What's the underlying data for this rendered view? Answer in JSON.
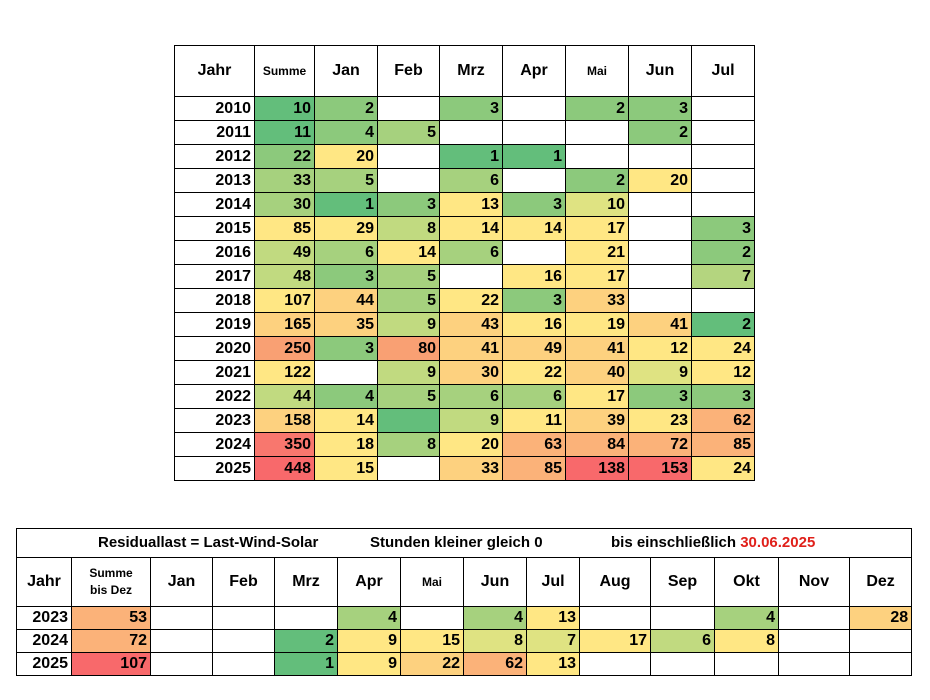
{
  "palette": {
    "green_dark": "#63be7b",
    "green_mid": "#8cc97c",
    "green_light": "#c1da80",
    "yellow": "#ffe784",
    "orange_light": "#fdd17f",
    "orange": "#fbb279",
    "salmon": "#f9916e",
    "red": "#f8696b",
    "title_accent": "#e0201a"
  },
  "table1": {
    "headers": [
      "Jahr",
      "Summe",
      "Jan",
      "Feb",
      "Mrz",
      "Apr",
      "Mai",
      "Jun",
      "Jul"
    ],
    "rows": [
      {
        "year": "2010",
        "cells": [
          {
            "v": "10",
            "c": "#63be7b"
          },
          {
            "v": "2",
            "c": "#8cc97c"
          },
          {
            "v": "",
            "c": ""
          },
          {
            "v": "3",
            "c": "#8cc97c"
          },
          {
            "v": "",
            "c": ""
          },
          {
            "v": "2",
            "c": "#8cc97c"
          },
          {
            "v": "3",
            "c": "#8cc97c"
          },
          {
            "v": "",
            "c": ""
          }
        ]
      },
      {
        "year": "2011",
        "cells": [
          {
            "v": "11",
            "c": "#63be7b"
          },
          {
            "v": "4",
            "c": "#8cc97c"
          },
          {
            "v": "5",
            "c": "#a6d17e"
          },
          {
            "v": "",
            "c": ""
          },
          {
            "v": "",
            "c": ""
          },
          {
            "v": "",
            "c": ""
          },
          {
            "v": "2",
            "c": "#8cc97c"
          },
          {
            "v": "",
            "c": ""
          }
        ]
      },
      {
        "year": "2012",
        "cells": [
          {
            "v": "22",
            "c": "#8cc97c"
          },
          {
            "v": "20",
            "c": "#ffe784"
          },
          {
            "v": "",
            "c": ""
          },
          {
            "v": "1",
            "c": "#63be7b"
          },
          {
            "v": "1",
            "c": "#63be7b"
          },
          {
            "v": "",
            "c": ""
          },
          {
            "v": "",
            "c": ""
          },
          {
            "v": "",
            "c": ""
          }
        ]
      },
      {
        "year": "2013",
        "cells": [
          {
            "v": "33",
            "c": "#a6d17e"
          },
          {
            "v": "5",
            "c": "#a6d17e"
          },
          {
            "v": "",
            "c": ""
          },
          {
            "v": "6",
            "c": "#a6d17e"
          },
          {
            "v": "",
            "c": ""
          },
          {
            "v": "2",
            "c": "#8cc97c"
          },
          {
            "v": "20",
            "c": "#ffe784"
          },
          {
            "v": "",
            "c": ""
          }
        ]
      },
      {
        "year": "2014",
        "cells": [
          {
            "v": "30",
            "c": "#a6d17e"
          },
          {
            "v": "1",
            "c": "#63be7b"
          },
          {
            "v": "3",
            "c": "#8cc97c"
          },
          {
            "v": "13",
            "c": "#ffe784"
          },
          {
            "v": "3",
            "c": "#8cc97c"
          },
          {
            "v": "10",
            "c": "#dfe382"
          },
          {
            "v": "",
            "c": ""
          },
          {
            "v": "",
            "c": ""
          }
        ]
      },
      {
        "year": "2015",
        "cells": [
          {
            "v": "85",
            "c": "#ffe784"
          },
          {
            "v": "29",
            "c": "#ffe784"
          },
          {
            "v": "8",
            "c": "#c1da80"
          },
          {
            "v": "14",
            "c": "#ffe784"
          },
          {
            "v": "14",
            "c": "#ffe784"
          },
          {
            "v": "17",
            "c": "#ffe784"
          },
          {
            "v": "",
            "c": ""
          },
          {
            "v": "3",
            "c": "#8cc97c"
          }
        ]
      },
      {
        "year": "2016",
        "cells": [
          {
            "v": "49",
            "c": "#c1da80"
          },
          {
            "v": "6",
            "c": "#a6d17e"
          },
          {
            "v": "14",
            "c": "#ffe784"
          },
          {
            "v": "6",
            "c": "#a6d17e"
          },
          {
            "v": "",
            "c": ""
          },
          {
            "v": "21",
            "c": "#ffe784"
          },
          {
            "v": "",
            "c": ""
          },
          {
            "v": "2",
            "c": "#8cc97c"
          }
        ]
      },
      {
        "year": "2017",
        "cells": [
          {
            "v": "48",
            "c": "#c1da80"
          },
          {
            "v": "3",
            "c": "#8cc97c"
          },
          {
            "v": "5",
            "c": "#a6d17e"
          },
          {
            "v": "",
            "c": ""
          },
          {
            "v": "16",
            "c": "#ffe784"
          },
          {
            "v": "17",
            "c": "#ffe784"
          },
          {
            "v": "",
            "c": ""
          },
          {
            "v": "7",
            "c": "#b4d57f"
          }
        ]
      },
      {
        "year": "2018",
        "cells": [
          {
            "v": "107",
            "c": "#ffe784"
          },
          {
            "v": "44",
            "c": "#fdd17f"
          },
          {
            "v": "5",
            "c": "#a6d17e"
          },
          {
            "v": "22",
            "c": "#ffe784"
          },
          {
            "v": "3",
            "c": "#8cc97c"
          },
          {
            "v": "33",
            "c": "#fdd17f"
          },
          {
            "v": "",
            "c": ""
          },
          {
            "v": "",
            "c": ""
          }
        ]
      },
      {
        "year": "2019",
        "cells": [
          {
            "v": "165",
            "c": "#fdd17f"
          },
          {
            "v": "35",
            "c": "#fdd17f"
          },
          {
            "v": "9",
            "c": "#c1da80"
          },
          {
            "v": "43",
            "c": "#fdd17f"
          },
          {
            "v": "16",
            "c": "#ffe784"
          },
          {
            "v": "19",
            "c": "#ffe784"
          },
          {
            "v": "41",
            "c": "#fdd17f"
          },
          {
            "v": "2",
            "c": "#63be7b"
          }
        ]
      },
      {
        "year": "2020",
        "cells": [
          {
            "v": "250",
            "c": "#f9a073"
          },
          {
            "v": "3",
            "c": "#8cc97c"
          },
          {
            "v": "80",
            "c": "#f9a073"
          },
          {
            "v": "41",
            "c": "#fdd17f"
          },
          {
            "v": "49",
            "c": "#fdd17f"
          },
          {
            "v": "41",
            "c": "#fdd17f"
          },
          {
            "v": "12",
            "c": "#ffe784"
          },
          {
            "v": "24",
            "c": "#ffe784"
          }
        ]
      },
      {
        "year": "2021",
        "cells": [
          {
            "v": "122",
            "c": "#ffe784"
          },
          {
            "v": "",
            "c": ""
          },
          {
            "v": "9",
            "c": "#c1da80"
          },
          {
            "v": "30",
            "c": "#fdd17f"
          },
          {
            "v": "22",
            "c": "#ffe784"
          },
          {
            "v": "40",
            "c": "#fdd17f"
          },
          {
            "v": "9",
            "c": "#dfe382"
          },
          {
            "v": "12",
            "c": "#ffe784"
          }
        ]
      },
      {
        "year": "2022",
        "cells": [
          {
            "v": "44",
            "c": "#c1da80"
          },
          {
            "v": "4",
            "c": "#8cc97c"
          },
          {
            "v": "5",
            "c": "#a6d17e"
          },
          {
            "v": "6",
            "c": "#a6d17e"
          },
          {
            "v": "6",
            "c": "#a6d17e"
          },
          {
            "v": "17",
            "c": "#ffe784"
          },
          {
            "v": "3",
            "c": "#8cc97c"
          },
          {
            "v": "3",
            "c": "#8cc97c"
          }
        ]
      },
      {
        "year": "2023",
        "cells": [
          {
            "v": "158",
            "c": "#fdd17f"
          },
          {
            "v": "14",
            "c": "#ffe784"
          },
          {
            "v": "",
            "c": "#63be7b"
          },
          {
            "v": "9",
            "c": "#c1da80"
          },
          {
            "v": "11",
            "c": "#ffe784"
          },
          {
            "v": "39",
            "c": "#fdd17f"
          },
          {
            "v": "23",
            "c": "#ffe784"
          },
          {
            "v": "62",
            "c": "#fbb279"
          }
        ]
      },
      {
        "year": "2024",
        "cells": [
          {
            "v": "350",
            "c": "#f8776e"
          },
          {
            "v": "18",
            "c": "#ffe784"
          },
          {
            "v": "8",
            "c": "#a6d17e"
          },
          {
            "v": "20",
            "c": "#ffe784"
          },
          {
            "v": "63",
            "c": "#fbb279"
          },
          {
            "v": "84",
            "c": "#fbb279"
          },
          {
            "v": "72",
            "c": "#fbb279"
          },
          {
            "v": "85",
            "c": "#fbb279"
          }
        ]
      },
      {
        "year": "2025",
        "cells": [
          {
            "v": "448",
            "c": "#f8696b"
          },
          {
            "v": "15",
            "c": "#ffe784"
          },
          {
            "v": "",
            "c": ""
          },
          {
            "v": "33",
            "c": "#fdd17f"
          },
          {
            "v": "85",
            "c": "#fbb279"
          },
          {
            "v": "138",
            "c": "#f8696b"
          },
          {
            "v": "153",
            "c": "#f8696b"
          },
          {
            "v": "24",
            "c": "#ffe784"
          }
        ]
      }
    ]
  },
  "table2": {
    "title_a": "Residuallast = Last-Wind-Solar",
    "title_b": "Stunden kleiner gleich  0",
    "title_c": "bis einschließlich ",
    "title_date": "30.06.2025",
    "headers": [
      "Jahr",
      "Summe\nbis Dez",
      "Jan",
      "Feb",
      "Mrz",
      "Apr",
      "Mai",
      "Jun",
      "Jul",
      "Aug",
      "Sep",
      "Okt",
      "Nov",
      "Dez"
    ],
    "rows": [
      {
        "year": "2023",
        "cells": [
          {
            "v": "53",
            "c": "#fbb279"
          },
          {
            "v": "",
            "c": ""
          },
          {
            "v": "",
            "c": ""
          },
          {
            "v": "",
            "c": ""
          },
          {
            "v": "4",
            "c": "#a6d17e"
          },
          {
            "v": "",
            "c": ""
          },
          {
            "v": "4",
            "c": "#a6d17e"
          },
          {
            "v": "13",
            "c": "#ffe784"
          },
          {
            "v": "",
            "c": ""
          },
          {
            "v": "",
            "c": ""
          },
          {
            "v": "4",
            "c": "#a6d17e"
          },
          {
            "v": "",
            "c": ""
          },
          {
            "v": "28",
            "c": "#fdd17f"
          }
        ]
      },
      {
        "year": "2024",
        "cells": [
          {
            "v": "72",
            "c": "#fbb279"
          },
          {
            "v": "",
            "c": ""
          },
          {
            "v": "",
            "c": ""
          },
          {
            "v": "2",
            "c": "#63be7b"
          },
          {
            "v": "9",
            "c": "#ffe784"
          },
          {
            "v": "15",
            "c": "#ffe784"
          },
          {
            "v": "8",
            "c": "#dfe382"
          },
          {
            "v": "7",
            "c": "#dfe382"
          },
          {
            "v": "17",
            "c": "#ffe784"
          },
          {
            "v": "6",
            "c": "#c1da80"
          },
          {
            "v": "8",
            "c": "#ffe784"
          },
          {
            "v": "",
            "c": ""
          },
          {
            "v": "",
            "c": ""
          }
        ]
      },
      {
        "year": "2025",
        "cells": [
          {
            "v": "107",
            "c": "#f8696b"
          },
          {
            "v": "",
            "c": ""
          },
          {
            "v": "",
            "c": ""
          },
          {
            "v": "1",
            "c": "#63be7b"
          },
          {
            "v": "9",
            "c": "#ffe784"
          },
          {
            "v": "22",
            "c": "#fdd17f"
          },
          {
            "v": "62",
            "c": "#fbb279"
          },
          {
            "v": "13",
            "c": "#ffe784"
          },
          {
            "v": "",
            "c": ""
          },
          {
            "v": "",
            "c": ""
          },
          {
            "v": "",
            "c": ""
          },
          {
            "v": "",
            "c": ""
          },
          {
            "v": "",
            "c": ""
          }
        ]
      }
    ]
  }
}
